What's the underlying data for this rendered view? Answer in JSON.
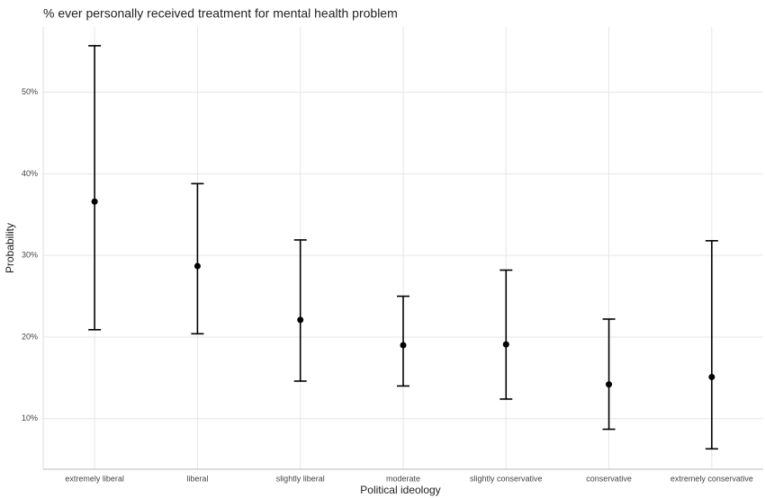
{
  "chart_data": {
    "type": "errorbar",
    "title": "% ever personally received treatment for mental health problem",
    "x_label": "Political ideology",
    "y_label": "Probability",
    "categories": [
      "extremely liberal",
      "liberal",
      "slightly liberal",
      "moderate",
      "slightly conservative",
      "conservative",
      "extremely conservative"
    ],
    "series": [
      {
        "color": "#000000",
        "values": [
          36.6,
          28.7,
          22.1,
          19.0,
          19.1,
          14.2,
          15.1
        ],
        "lower": [
          20.9,
          20.4,
          14.6,
          14.0,
          12.4,
          8.7,
          6.3
        ],
        "upper": [
          55.7,
          38.8,
          31.9,
          25.0,
          28.2,
          22.2,
          31.8
        ]
      }
    ],
    "ylim": [
      3.8,
      58
    ],
    "yticks": [
      {
        "value": 10,
        "label": "10%"
      },
      {
        "value": 20,
        "label": "20%"
      },
      {
        "value": 30,
        "label": "30%"
      },
      {
        "value": 40,
        "label": "40%"
      },
      {
        "value": 50,
        "label": "50%"
      }
    ],
    "grid": true
  }
}
